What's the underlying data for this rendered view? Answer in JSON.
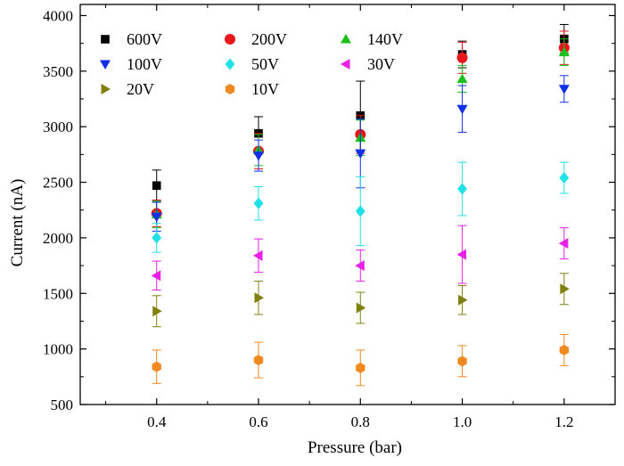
{
  "chart_data": {
    "type": "scatter",
    "title": "",
    "xlabel": "Pressure (bar)",
    "ylabel": "Current (nA)",
    "xlim": [
      0.25,
      1.3
    ],
    "ylim": [
      500,
      4100
    ],
    "x": [
      0.4,
      0.6,
      0.8,
      1.0,
      1.2
    ],
    "x_ticks": [
      "0.4",
      "0.6",
      "0.8",
      "1.0",
      "1.2"
    ],
    "y_ticks": [
      "500",
      "1000",
      "1500",
      "2000",
      "2500",
      "3000",
      "3500",
      "4000"
    ],
    "grid": false,
    "legend_position": "top-left",
    "series": [
      {
        "name": "600V",
        "marker": "square",
        "color": "#000000",
        "values": [
          2470,
          2940,
          3100,
          3650,
          3790
        ],
        "errors": [
          140,
          150,
          310,
          120,
          130
        ]
      },
      {
        "name": "200V",
        "marker": "circle",
        "color": "#e8171b",
        "values": [
          2220,
          2780,
          2930,
          3620,
          3710
        ],
        "errors": [
          120,
          160,
          170,
          140,
          150
        ]
      },
      {
        "name": "140V",
        "marker": "triangle-up",
        "color": "#18c018",
        "values": [
          2210,
          2790,
          2900,
          3430,
          3670
        ],
        "errors": [
          120,
          140,
          160,
          120,
          120
        ]
      },
      {
        "name": "100V",
        "marker": "triangle-down",
        "color": "#1030e8",
        "values": [
          2190,
          2740,
          2760,
          3160,
          3340
        ],
        "errors": [
          130,
          140,
          310,
          210,
          120
        ]
      },
      {
        "name": "50V",
        "marker": "diamond",
        "color": "#20e0e8",
        "values": [
          2000,
          2310,
          2240,
          2440,
          2540
        ],
        "errors": [
          130,
          150,
          310,
          240,
          140
        ]
      },
      {
        "name": "30V",
        "marker": "triangle-left",
        "color": "#e820e8",
        "values": [
          1660,
          1840,
          1750,
          1850,
          1950
        ],
        "errors": [
          130,
          150,
          140,
          260,
          140
        ]
      },
      {
        "name": "20V",
        "marker": "triangle-right",
        "color": "#808010",
        "values": [
          1340,
          1460,
          1370,
          1440,
          1540
        ],
        "errors": [
          140,
          150,
          140,
          130,
          140
        ]
      },
      {
        "name": "10V",
        "marker": "hexagon",
        "color": "#f08a20",
        "values": [
          840,
          900,
          830,
          890,
          990
        ],
        "errors": [
          150,
          160,
          160,
          140,
          140
        ]
      }
    ]
  }
}
